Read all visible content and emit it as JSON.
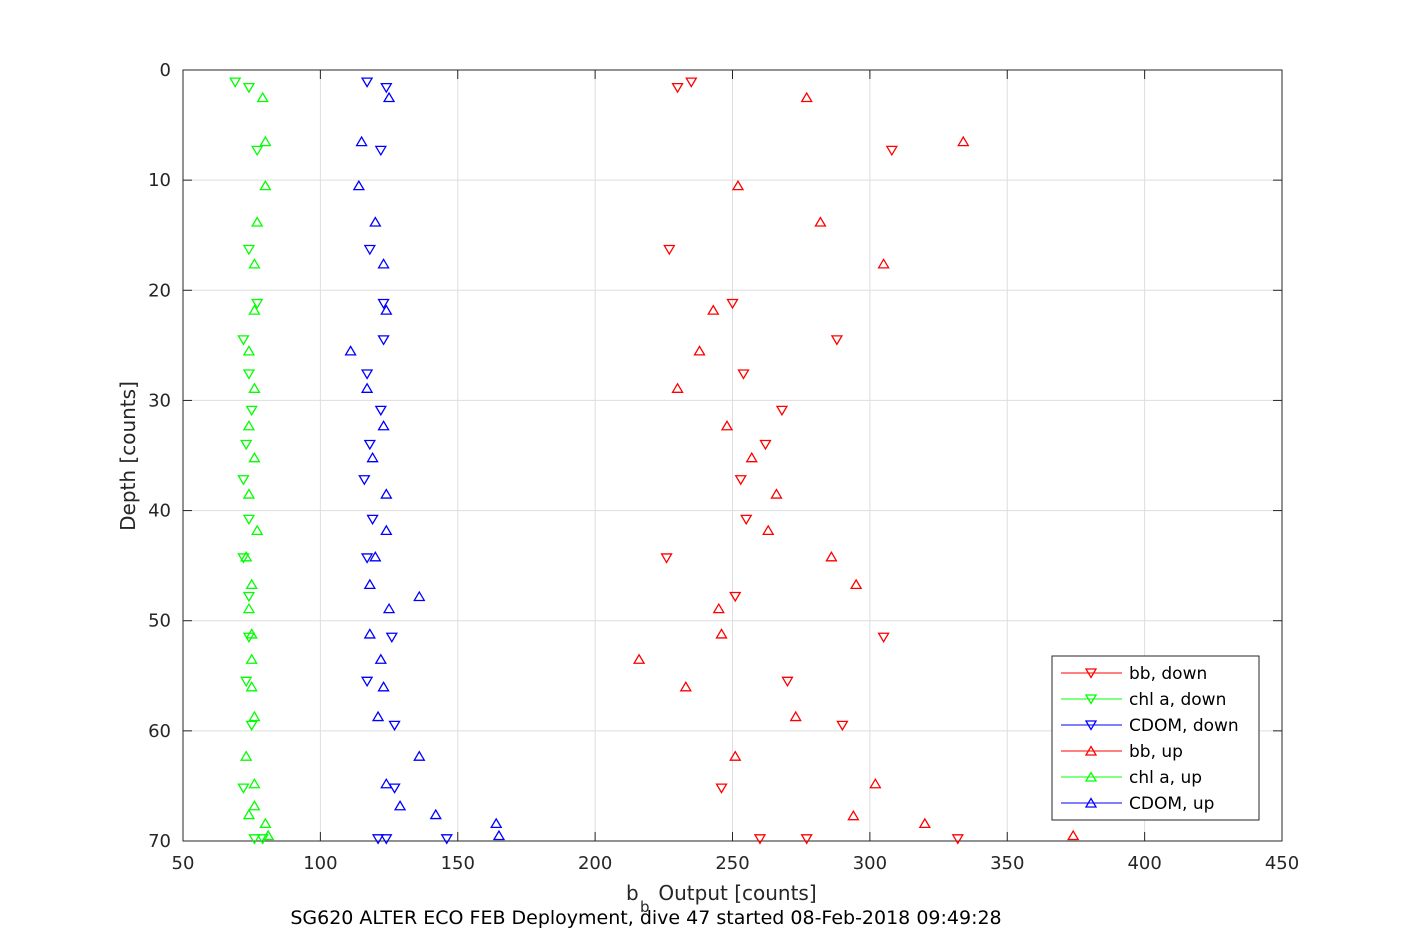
{
  "chart_data": {
    "type": "scatter",
    "xlabel_main": "b",
    "xlabel_sub": "b",
    "xlabel_rest": " Output [counts]",
    "ylabel": "Depth [counts]",
    "caption": "SG620 ALTER ECO FEB Deployment, dive 47 started 08-Feb-2018 09:49:28",
    "xlim": [
      50,
      450
    ],
    "ylim": [
      0,
      70
    ],
    "y_reversed": true,
    "grid": true,
    "legend_position": "bottom-right",
    "x_ticks": [
      "50",
      "100",
      "150",
      "200",
      "250",
      "300",
      "350",
      "400",
      "450"
    ],
    "y_ticks": [
      "0",
      "10",
      "20",
      "30",
      "40",
      "50",
      "60",
      "70"
    ],
    "series": [
      {
        "name": "bb, down",
        "color": "#ff0000",
        "marker": "triangle-down",
        "points": [
          [
            235,
            1.1
          ],
          [
            230,
            1.6
          ],
          [
            308,
            7.3
          ],
          [
            227,
            16.3
          ],
          [
            250,
            21.2
          ],
          [
            288,
            24.5
          ],
          [
            254,
            27.6
          ],
          [
            268,
            30.9
          ],
          [
            262,
            34.0
          ],
          [
            253,
            37.2
          ],
          [
            255,
            40.8
          ],
          [
            226,
            44.3
          ],
          [
            251,
            47.8
          ],
          [
            305,
            51.5
          ],
          [
            270,
            55.5
          ],
          [
            290,
            59.5
          ],
          [
            246,
            65.2
          ],
          [
            260,
            69.8
          ],
          [
            277,
            69.8
          ],
          [
            332,
            69.8
          ]
        ]
      },
      {
        "name": "chl a, down",
        "color": "#00ff00",
        "marker": "triangle-down",
        "points": [
          [
            69,
            1.1
          ],
          [
            74,
            1.6
          ],
          [
            77,
            7.3
          ],
          [
            74,
            16.3
          ],
          [
            77,
            21.2
          ],
          [
            72,
            24.5
          ],
          [
            74,
            27.6
          ],
          [
            75,
            30.9
          ],
          [
            73,
            34.0
          ],
          [
            72,
            37.2
          ],
          [
            74,
            40.8
          ],
          [
            72,
            44.3
          ],
          [
            74,
            47.8
          ],
          [
            74,
            51.5
          ],
          [
            73,
            55.5
          ],
          [
            75,
            59.5
          ],
          [
            72,
            65.2
          ],
          [
            76,
            69.8
          ],
          [
            79,
            69.8
          ]
        ]
      },
      {
        "name": "CDOM, down",
        "color": "#0000ff",
        "marker": "triangle-down",
        "points": [
          [
            117,
            1.1
          ],
          [
            124,
            1.6
          ],
          [
            122,
            7.3
          ],
          [
            118,
            16.3
          ],
          [
            123,
            21.2
          ],
          [
            123,
            24.5
          ],
          [
            117,
            27.6
          ],
          [
            122,
            30.9
          ],
          [
            118,
            34.0
          ],
          [
            116,
            37.2
          ],
          [
            119,
            40.8
          ],
          [
            117,
            44.3
          ],
          [
            126,
            51.5
          ],
          [
            117,
            55.5
          ],
          [
            127,
            59.5
          ],
          [
            127,
            65.2
          ],
          [
            121,
            69.8
          ],
          [
            124,
            69.8
          ],
          [
            146,
            69.8
          ]
        ]
      },
      {
        "name": "bb, up",
        "color": "#ff0000",
        "marker": "triangle-up",
        "points": [
          [
            277,
            2.5
          ],
          [
            334,
            6.5
          ],
          [
            252,
            10.5
          ],
          [
            282,
            13.8
          ],
          [
            305,
            17.6
          ],
          [
            243,
            21.8
          ],
          [
            238,
            25.5
          ],
          [
            230,
            28.9
          ],
          [
            248,
            32.3
          ],
          [
            257,
            35.2
          ],
          [
            266,
            38.5
          ],
          [
            263,
            41.8
          ],
          [
            286,
            44.2
          ],
          [
            295,
            46.7
          ],
          [
            245,
            48.9
          ],
          [
            246,
            51.2
          ],
          [
            216,
            53.5
          ],
          [
            233,
            56.0
          ],
          [
            273,
            58.7
          ],
          [
            251,
            62.3
          ],
          [
            302,
            64.8
          ],
          [
            294,
            67.7
          ],
          [
            320,
            68.4
          ],
          [
            374,
            69.5
          ]
        ]
      },
      {
        "name": "chl a, up",
        "color": "#00ff00",
        "marker": "triangle-up",
        "points": [
          [
            79,
            2.5
          ],
          [
            80,
            6.5
          ],
          [
            80,
            10.5
          ],
          [
            77,
            13.8
          ],
          [
            76,
            17.6
          ],
          [
            76,
            21.8
          ],
          [
            74,
            25.5
          ],
          [
            76,
            28.9
          ],
          [
            74,
            32.3
          ],
          [
            76,
            35.2
          ],
          [
            74,
            38.5
          ],
          [
            77,
            41.8
          ],
          [
            73,
            44.2
          ],
          [
            75,
            46.7
          ],
          [
            74,
            48.9
          ],
          [
            75,
            51.2
          ],
          [
            75,
            53.5
          ],
          [
            75,
            56.0
          ],
          [
            76,
            58.7
          ],
          [
            73,
            62.3
          ],
          [
            76,
            64.8
          ],
          [
            76,
            66.8
          ],
          [
            74,
            67.6
          ],
          [
            80,
            68.4
          ],
          [
            81,
            69.5
          ]
        ]
      },
      {
        "name": "CDOM, up",
        "color": "#0000ff",
        "marker": "triangle-up",
        "points": [
          [
            125,
            2.5
          ],
          [
            115,
            6.5
          ],
          [
            114,
            10.5
          ],
          [
            120,
            13.8
          ],
          [
            123,
            17.6
          ],
          [
            124,
            21.8
          ],
          [
            111,
            25.5
          ],
          [
            117,
            28.9
          ],
          [
            123,
            32.3
          ],
          [
            119,
            35.2
          ],
          [
            124,
            38.5
          ],
          [
            124,
            41.8
          ],
          [
            120,
            44.2
          ],
          [
            118,
            46.7
          ],
          [
            136,
            47.8
          ],
          [
            125,
            48.9
          ],
          [
            118,
            51.2
          ],
          [
            122,
            53.5
          ],
          [
            123,
            56.0
          ],
          [
            121,
            58.7
          ],
          [
            136,
            62.3
          ],
          [
            124,
            64.8
          ],
          [
            129,
            66.8
          ],
          [
            142,
            67.6
          ],
          [
            164,
            68.4
          ],
          [
            165,
            69.5
          ]
        ]
      }
    ]
  }
}
